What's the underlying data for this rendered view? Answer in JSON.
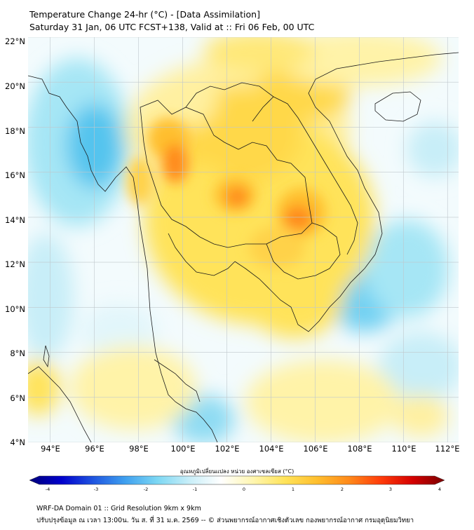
{
  "header": {
    "title_line1": "Temperature Change 24-hr (°C) - [Data Assimilation]",
    "title_line2": "Saturday 31 Jan, 06 UTC FCST+138, Valid at :: Fri 06 Feb, 00 UTC"
  },
  "map": {
    "lat_labels": [
      "22°N",
      "20°N",
      "18°N",
      "16°N",
      "14°N",
      "12°N",
      "10°N",
      "8°N",
      "6°N",
      "4°N"
    ],
    "lon_labels": [
      "94°E",
      "96°E",
      "98°E",
      "100°E",
      "102°E",
      "104°E",
      "106°E",
      "108°E",
      "110°E",
      "112°E"
    ],
    "lat_range": [
      4,
      22
    ],
    "lon_range": [
      93,
      112.5
    ]
  },
  "colorbar": {
    "caption": "อุณหภูมิเปลี่ยนแปลง หน่วย องศาเซลเซียส (°C)",
    "ticks": [
      "-4",
      "-3",
      "-2",
      "-1",
      "0",
      "1",
      "2",
      "3",
      "4"
    ],
    "range": [
      -4,
      4
    ],
    "colors": [
      "#00007a",
      "#0000cc",
      "#1f55e0",
      "#3fa0ef",
      "#7cd7f3",
      "#c8eef8",
      "#ffffff",
      "#fff6b0",
      "#ffe35a",
      "#ffbf2e",
      "#ff8a1a",
      "#ff3c0a",
      "#d40000",
      "#7a0000"
    ]
  },
  "footer": {
    "line1": "WRF-DA Domain 01 :: Grid Resolution 9km x 9km",
    "line2": "ปรับปรุงข้อมูล ณ เวลา 13:00น. วัน ส. ที่ 31 ม.ค. 2569 -- © ส่วนพยากรณ์อากาศเชิงตัวเลข กองพยากรณ์อากาศ กรมอุตุนิยมวิทยา"
  }
}
